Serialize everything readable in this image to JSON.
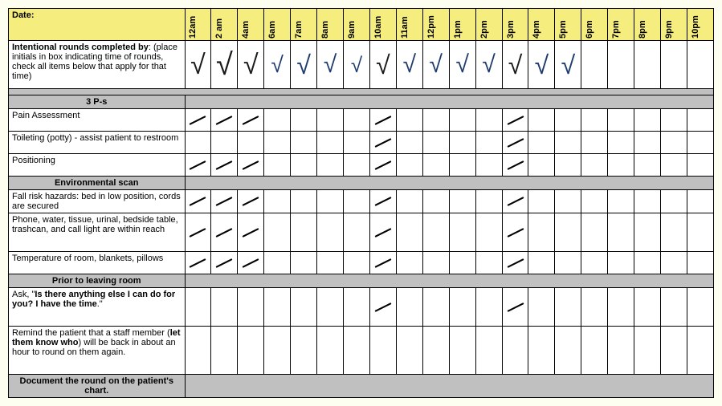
{
  "colors": {
    "header_bg": "#f5ee7e",
    "section_bg": "#c0c0c0",
    "page_bg": "#fdfdf0",
    "border": "#000000",
    "check_dark": "#1a1a1a",
    "check_blue": "#1f3b6e",
    "tick": "#000000"
  },
  "header": {
    "date_label": "Date:",
    "times": [
      "12am",
      "2 am",
      "4am",
      "6am",
      "7am",
      "8am",
      "9am",
      "10am",
      "11am",
      "12pm",
      "1pm",
      "2pm",
      "3pm",
      "4pm",
      "5pm",
      "6pm",
      "7pm",
      "8pm",
      "9pm",
      "10pm"
    ]
  },
  "rounds_row": {
    "label_bold": "Intentional rounds completed by",
    "label_rest": ": (place initials in box indicating time of rounds, check all items below that apply for that time)",
    "marks": [
      {
        "glyph": "√",
        "color": "#1a1a1a",
        "size": 34
      },
      {
        "glyph": "√",
        "color": "#1a1a1a",
        "size": 38
      },
      {
        "glyph": "√",
        "color": "#1a1a1a",
        "size": 34
      },
      {
        "glyph": "√",
        "color": "#1f3b6e",
        "size": 28
      },
      {
        "glyph": "√",
        "color": "#1f3b6e",
        "size": 32
      },
      {
        "glyph": "√",
        "color": "#1f3b6e",
        "size": 30
      },
      {
        "glyph": "√",
        "color": "#1f3b6e",
        "size": 26
      },
      {
        "glyph": "√",
        "color": "#1a1a1a",
        "size": 32
      },
      {
        "glyph": "√",
        "color": "#1f3b6e",
        "size": 30
      },
      {
        "glyph": "√",
        "color": "#1f3b6e",
        "size": 30
      },
      {
        "glyph": "√",
        "color": "#1f3b6e",
        "size": 30
      },
      {
        "glyph": "√",
        "color": "#1f3b6e",
        "size": 30
      },
      {
        "glyph": "√",
        "color": "#1a1a1a",
        "size": 32
      },
      {
        "glyph": "√",
        "color": "#1f3b6e",
        "size": 32
      },
      {
        "glyph": "√",
        "color": "#1f3b6e",
        "size": 32
      },
      null,
      null,
      null,
      null,
      null
    ]
  },
  "sections": [
    {
      "title": "3 P-s",
      "rows": [
        {
          "label": "Pain Assessment",
          "h": "row-h",
          "ticks": [
            true,
            true,
            true,
            false,
            false,
            false,
            false,
            true,
            false,
            false,
            false,
            false,
            true,
            false,
            false,
            false,
            false,
            false,
            false,
            false
          ]
        },
        {
          "label": "Toileting (potty) - assist patient to restroom",
          "h": "row-h",
          "ticks": [
            false,
            false,
            false,
            false,
            false,
            false,
            false,
            true,
            false,
            false,
            false,
            false,
            true,
            false,
            false,
            false,
            false,
            false,
            false,
            false
          ]
        },
        {
          "label": "Positioning",
          "h": "row-h",
          "ticks": [
            true,
            true,
            true,
            false,
            false,
            false,
            false,
            true,
            false,
            false,
            false,
            false,
            true,
            false,
            false,
            false,
            false,
            false,
            false,
            false
          ]
        }
      ]
    },
    {
      "title": "Environmental scan",
      "rows": [
        {
          "label": "Fall risk hazards: bed in low position, cords are secured",
          "h": "row-h",
          "ticks": [
            true,
            true,
            true,
            false,
            false,
            false,
            false,
            true,
            false,
            false,
            false,
            false,
            true,
            false,
            false,
            false,
            false,
            false,
            false,
            false
          ]
        },
        {
          "label": "Phone, water, tissue, urinal, bedside table, trashcan, and call light are within reach",
          "h": "row-h2",
          "ticks": [
            true,
            true,
            true,
            false,
            false,
            false,
            false,
            true,
            false,
            false,
            false,
            false,
            true,
            false,
            false,
            false,
            false,
            false,
            false,
            false
          ]
        },
        {
          "label": "Temperature of room, blankets, pillows",
          "h": "row-h",
          "ticks": [
            true,
            true,
            true,
            false,
            false,
            false,
            false,
            true,
            false,
            false,
            false,
            false,
            true,
            false,
            false,
            false,
            false,
            false,
            false,
            false
          ]
        }
      ]
    },
    {
      "title": "Prior to leaving room",
      "rows": [
        {
          "label_html": "Ask, \"<b>Is there anything else I can do for you? I have the time</b>.\"",
          "h": "row-h2",
          "ticks": [
            false,
            false,
            false,
            false,
            false,
            false,
            false,
            true,
            false,
            false,
            false,
            false,
            true,
            false,
            false,
            false,
            false,
            false,
            false,
            false
          ]
        },
        {
          "label_html": "Remind the patient that a staff member (<b>let them know who</b>) will be back in about an hour to round on them again.",
          "h": "row-h3",
          "ticks": [
            false,
            false,
            false,
            false,
            false,
            false,
            false,
            false,
            false,
            false,
            false,
            false,
            false,
            false,
            false,
            false,
            false,
            false,
            false,
            false
          ]
        }
      ]
    }
  ],
  "footer": "Document the round on the patient's chart."
}
